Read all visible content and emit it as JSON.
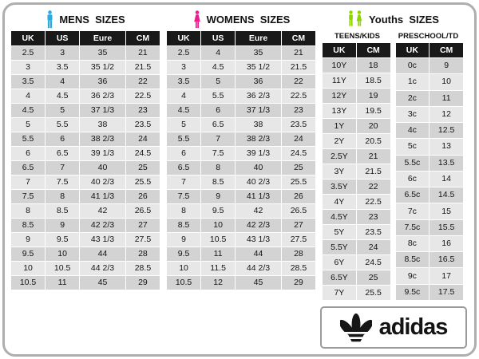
{
  "sections": {
    "mens": {
      "title": "MENS  SIZES"
    },
    "womens": {
      "title": "WOMENS  SIZES"
    },
    "youths": {
      "title": "Youths  SIZES",
      "teens_label": "TEENS/KIDS",
      "preschool_label": "PRESCHOOL/TD"
    }
  },
  "logo": {
    "brand": "adidas"
  },
  "colors": {
    "mens_icon": "#2bacdf",
    "womens_icon": "#ec1e8e",
    "youths_icon": "#8fd400",
    "header_bg": "#191919",
    "row_dark": "#d3d3d3",
    "row_light": "#e7e7e7"
  },
  "chart_data": [
    {
      "type": "table",
      "name": "mens-sizes",
      "title": "MENS  SIZES",
      "headers": [
        "UK",
        "US",
        "Eure",
        "CM"
      ],
      "rows": [
        [
          "2.5",
          "3",
          "35",
          "21"
        ],
        [
          "3",
          "3.5",
          "35 1/2",
          "21.5"
        ],
        [
          "3.5",
          "4",
          "36",
          "22"
        ],
        [
          "4",
          "4.5",
          "36 2/3",
          "22.5"
        ],
        [
          "4.5",
          "5",
          "37 1/3",
          "23"
        ],
        [
          "5",
          "5.5",
          "38",
          "23.5"
        ],
        [
          "5.5",
          "6",
          "38 2/3",
          "24"
        ],
        [
          "6",
          "6.5",
          "39 1/3",
          "24.5"
        ],
        [
          "6.5",
          "7",
          "40",
          "25"
        ],
        [
          "7",
          "7.5",
          "40 2/3",
          "25.5"
        ],
        [
          "7.5",
          "8",
          "41 1/3",
          "26"
        ],
        [
          "8",
          "8.5",
          "42",
          "26.5"
        ],
        [
          "8.5",
          "9",
          "42 2/3",
          "27"
        ],
        [
          "9",
          "9.5",
          "43 1/3",
          "27.5"
        ],
        [
          "9.5",
          "10",
          "44",
          "28"
        ],
        [
          "10",
          "10.5",
          "44 2/3",
          "28.5"
        ],
        [
          "10.5",
          "11",
          "45",
          "29"
        ]
      ]
    },
    {
      "type": "table",
      "name": "womens-sizes",
      "title": "WOMENS  SIZES",
      "headers": [
        "UK",
        "US",
        "Eure",
        "CM"
      ],
      "rows": [
        [
          "2.5",
          "4",
          "35",
          "21"
        ],
        [
          "3",
          "4.5",
          "35 1/2",
          "21.5"
        ],
        [
          "3.5",
          "5",
          "36",
          "22"
        ],
        [
          "4",
          "5.5",
          "36 2/3",
          "22.5"
        ],
        [
          "4.5",
          "6",
          "37 1/3",
          "23"
        ],
        [
          "5",
          "6.5",
          "38",
          "23.5"
        ],
        [
          "5.5",
          "7",
          "38 2/3",
          "24"
        ],
        [
          "6",
          "7.5",
          "39 1/3",
          "24.5"
        ],
        [
          "6.5",
          "8",
          "40",
          "25"
        ],
        [
          "7",
          "8.5",
          "40 2/3",
          "25.5"
        ],
        [
          "7.5",
          "9",
          "41 1/3",
          "26"
        ],
        [
          "8",
          "9.5",
          "42",
          "26.5"
        ],
        [
          "8.5",
          "10",
          "42 2/3",
          "27"
        ],
        [
          "9",
          "10.5",
          "43 1/3",
          "27.5"
        ],
        [
          "9.5",
          "11",
          "44",
          "28"
        ],
        [
          "10",
          "11.5",
          "44 2/3",
          "28.5"
        ],
        [
          "10.5",
          "12",
          "45",
          "29"
        ]
      ]
    },
    {
      "type": "table",
      "name": "youths-teens-kids",
      "title": "TEENS/KIDS",
      "headers": [
        "UK",
        "CM"
      ],
      "rows": [
        [
          "10Y",
          "18"
        ],
        [
          "11Y",
          "18.5"
        ],
        [
          "12Y",
          "19"
        ],
        [
          "13Y",
          "19.5"
        ],
        [
          "1Y",
          "20"
        ],
        [
          "2Y",
          "20.5"
        ],
        [
          "2.5Y",
          "21"
        ],
        [
          "3Y",
          "21.5"
        ],
        [
          "3.5Y",
          "22"
        ],
        [
          "4Y",
          "22.5"
        ],
        [
          "4.5Y",
          "23"
        ],
        [
          "5Y",
          "23.5"
        ],
        [
          "5.5Y",
          "24"
        ],
        [
          "6Y",
          "24.5"
        ],
        [
          "6.5Y",
          "25"
        ],
        [
          "7Y",
          "25.5"
        ]
      ]
    },
    {
      "type": "table",
      "name": "youths-preschool-td",
      "title": "PRESCHOOL/TD",
      "headers": [
        "UK",
        "CM"
      ],
      "rows": [
        [
          "0c",
          "9"
        ],
        [
          "1c",
          "10"
        ],
        [
          "2c",
          "11"
        ],
        [
          "3c",
          "12"
        ],
        [
          "4c",
          "12.5"
        ],
        [
          "5c",
          "13"
        ],
        [
          "5.5c",
          "13.5"
        ],
        [
          "6c",
          "14"
        ],
        [
          "6.5c",
          "14.5"
        ],
        [
          "7c",
          "15"
        ],
        [
          "7.5c",
          "15.5"
        ],
        [
          "8c",
          "16"
        ],
        [
          "8.5c",
          "16.5"
        ],
        [
          "9c",
          "17"
        ],
        [
          "9.5c",
          "17.5"
        ]
      ]
    }
  ]
}
